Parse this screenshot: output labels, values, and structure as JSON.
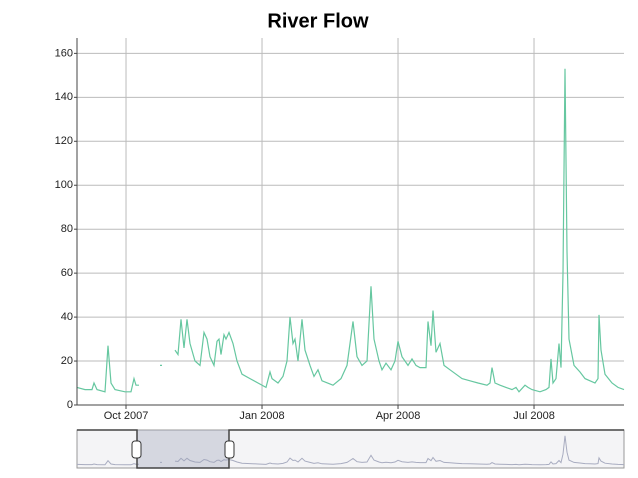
{
  "chart_data": {
    "type": "line",
    "title": "River Flow",
    "x": [
      2007.6599,
      2007.6746,
      2007.6875,
      2007.6912,
      2007.6967,
      2007.7114,
      2007.7169,
      2007.7224,
      2007.7298,
      2007.7482,
      2007.7592,
      2007.7647,
      2007.7684,
      2007.7739,
      2007.7941,
      2007.8125,
      2007.8162,
      2007.8272,
      2007.8401,
      2007.8456,
      2007.8511,
      2007.8566,
      2007.8621,
      2007.8676,
      2007.8768,
      2007.886,
      2007.8934,
      2007.8989,
      2007.9044,
      2007.9118,
      2007.9173,
      2007.921,
      2007.9246,
      2007.9301,
      2007.9338,
      2007.9393,
      2007.9467,
      2007.954,
      2007.9632,
      2007.9779,
      2007.9926,
      2008.0074,
      2008.0147,
      2008.0184,
      2008.0294,
      2008.0386,
      2008.046,
      2008.0515,
      2008.057,
      2008.0607,
      2008.0662,
      2008.0735,
      2008.079,
      2008.0882,
      2008.0956,
      2008.1029,
      2008.1103,
      2008.1305,
      2008.1452,
      2008.1563,
      2008.1618,
      2008.1673,
      2008.1746,
      2008.1838,
      2008.193,
      2008.2004,
      2008.2059,
      2008.2151,
      2008.2206,
      2008.2279,
      2008.2371,
      2008.2445,
      2008.25,
      2008.2574,
      2008.2684,
      2008.2757,
      2008.2831,
      2008.2904,
      2008.3015,
      2008.3051,
      2008.3107,
      2008.3143,
      2008.3199,
      2008.3272,
      2008.3346,
      2008.3456,
      2008.3566,
      2008.3676,
      2008.3824,
      2008.3971,
      2008.4136,
      2008.4191,
      2008.4228,
      2008.4283,
      2008.4375,
      2008.4485,
      2008.4596,
      2008.4669,
      2008.4724,
      2008.4835,
      2008.489,
      2008.4963,
      2008.511,
      2008.5221,
      2008.5276,
      2008.5313,
      2008.5349,
      2008.5404,
      2008.546,
      2008.5496,
      2008.5533,
      2008.557,
      2008.5607,
      2008.5643,
      2008.5735,
      2008.5846,
      2008.5938,
      2008.6029,
      2008.6121,
      2008.6176,
      2008.6195,
      2008.6232,
      2008.6305,
      2008.6434,
      2008.6544,
      2008.6654
    ],
    "values": [
      8,
      7,
      7,
      10,
      7,
      6,
      27,
      10,
      7,
      6,
      6,
      12,
      9,
      9,
      null,
      18,
      18,
      null,
      25,
      23,
      39,
      26,
      39,
      28,
      20,
      18,
      33,
      30,
      22,
      18,
      29,
      30,
      23,
      32,
      30,
      33,
      28,
      20,
      14,
      12,
      10,
      8,
      15,
      12,
      10,
      13,
      20,
      40,
      28,
      30,
      20,
      39,
      25,
      18,
      13,
      16,
      11,
      9,
      12,
      18,
      28,
      38,
      22,
      18,
      20,
      54,
      30,
      20,
      16,
      19,
      16,
      20,
      29,
      22,
      18,
      21,
      18,
      17,
      17,
      38,
      27,
      43,
      24,
      28,
      18,
      16,
      14,
      12,
      11,
      10,
      9,
      10,
      17,
      10,
      9,
      8,
      7,
      8,
      6,
      9,
      8,
      7,
      6,
      7,
      8,
      21,
      10,
      12,
      28,
      17,
      60,
      153,
      70,
      30,
      18,
      15,
      12,
      11,
      10,
      12,
      41,
      25,
      14,
      10,
      8,
      7
    ],
    "color": "#66c7a0",
    "xlim": [
      2007.6599,
      2008.6654
    ],
    "xticks": [
      {
        "value": 2007.75,
        "label": "Oct 2007"
      },
      {
        "value": 2008.0,
        "label": "Jan 2008"
      },
      {
        "value": 2008.25,
        "label": "Apr 2008"
      },
      {
        "value": 2008.5,
        "label": "Jul 2008"
      }
    ],
    "ylim": [
      0,
      167
    ],
    "yticks": [
      0,
      20,
      40,
      60,
      80,
      100,
      120,
      140,
      160
    ],
    "grid": true
  }
}
